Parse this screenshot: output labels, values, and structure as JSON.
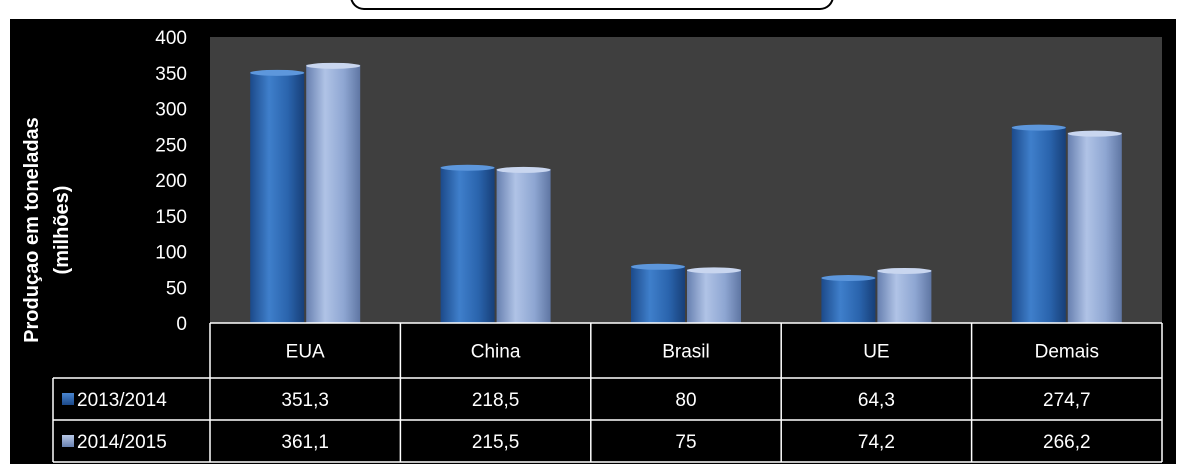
{
  "chart_data": {
    "type": "bar",
    "title": "",
    "ylabel_line1": "Produçao em toneladas",
    "ylabel_line2": "(milhões)",
    "categories": [
      "EUA",
      "China",
      "Brasil",
      "UE",
      "Demais"
    ],
    "series": [
      {
        "name": "2013/2014",
        "values": [
          351.3,
          218.5,
          80,
          64.3,
          274.7
        ],
        "color": "#2f6cb5",
        "labels": [
          "351,3",
          "218,5",
          "80",
          "64,3",
          "274,7"
        ]
      },
      {
        "name": "2014/2015",
        "values": [
          361.1,
          215.5,
          75,
          74.2,
          266.2
        ],
        "color": "#8fa6cf",
        "labels": [
          "361,1",
          "215,5",
          "75",
          "74,2",
          "266,2"
        ]
      }
    ],
    "ylim": [
      0,
      400
    ],
    "yticks": [
      "0",
      "50",
      "100",
      "150",
      "200",
      "250",
      "300",
      "350",
      "400"
    ],
    "plot_background": "#3f3f3f",
    "legend": "data-table",
    "grid": false
  }
}
